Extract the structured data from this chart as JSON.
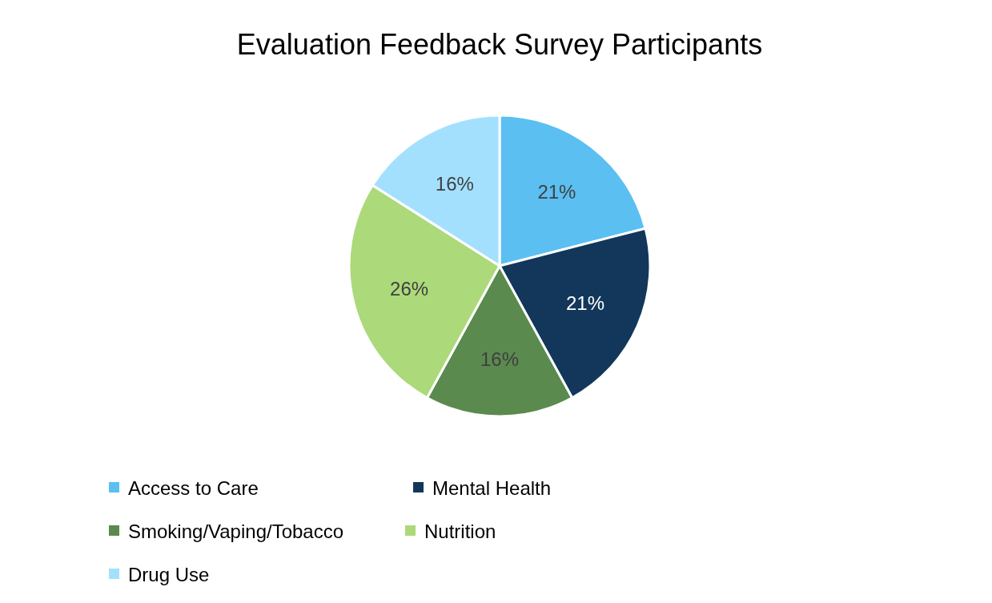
{
  "chart_data": {
    "type": "pie",
    "title": "Evaluation Feedback Survey Participants",
    "categories": [
      "Access to Care",
      "Mental Health",
      "Smoking/Vaping/Tobacco",
      "Nutrition",
      "Drug Use"
    ],
    "values": [
      21,
      21,
      16,
      26,
      16
    ],
    "colors": [
      "#5bbff2",
      "#12375a",
      "#5a8a4e",
      "#acd97a",
      "#a3e0fd"
    ],
    "value_labels": [
      "21%",
      "21%",
      "16%",
      "26%",
      "16%"
    ],
    "legend": "bottom"
  }
}
